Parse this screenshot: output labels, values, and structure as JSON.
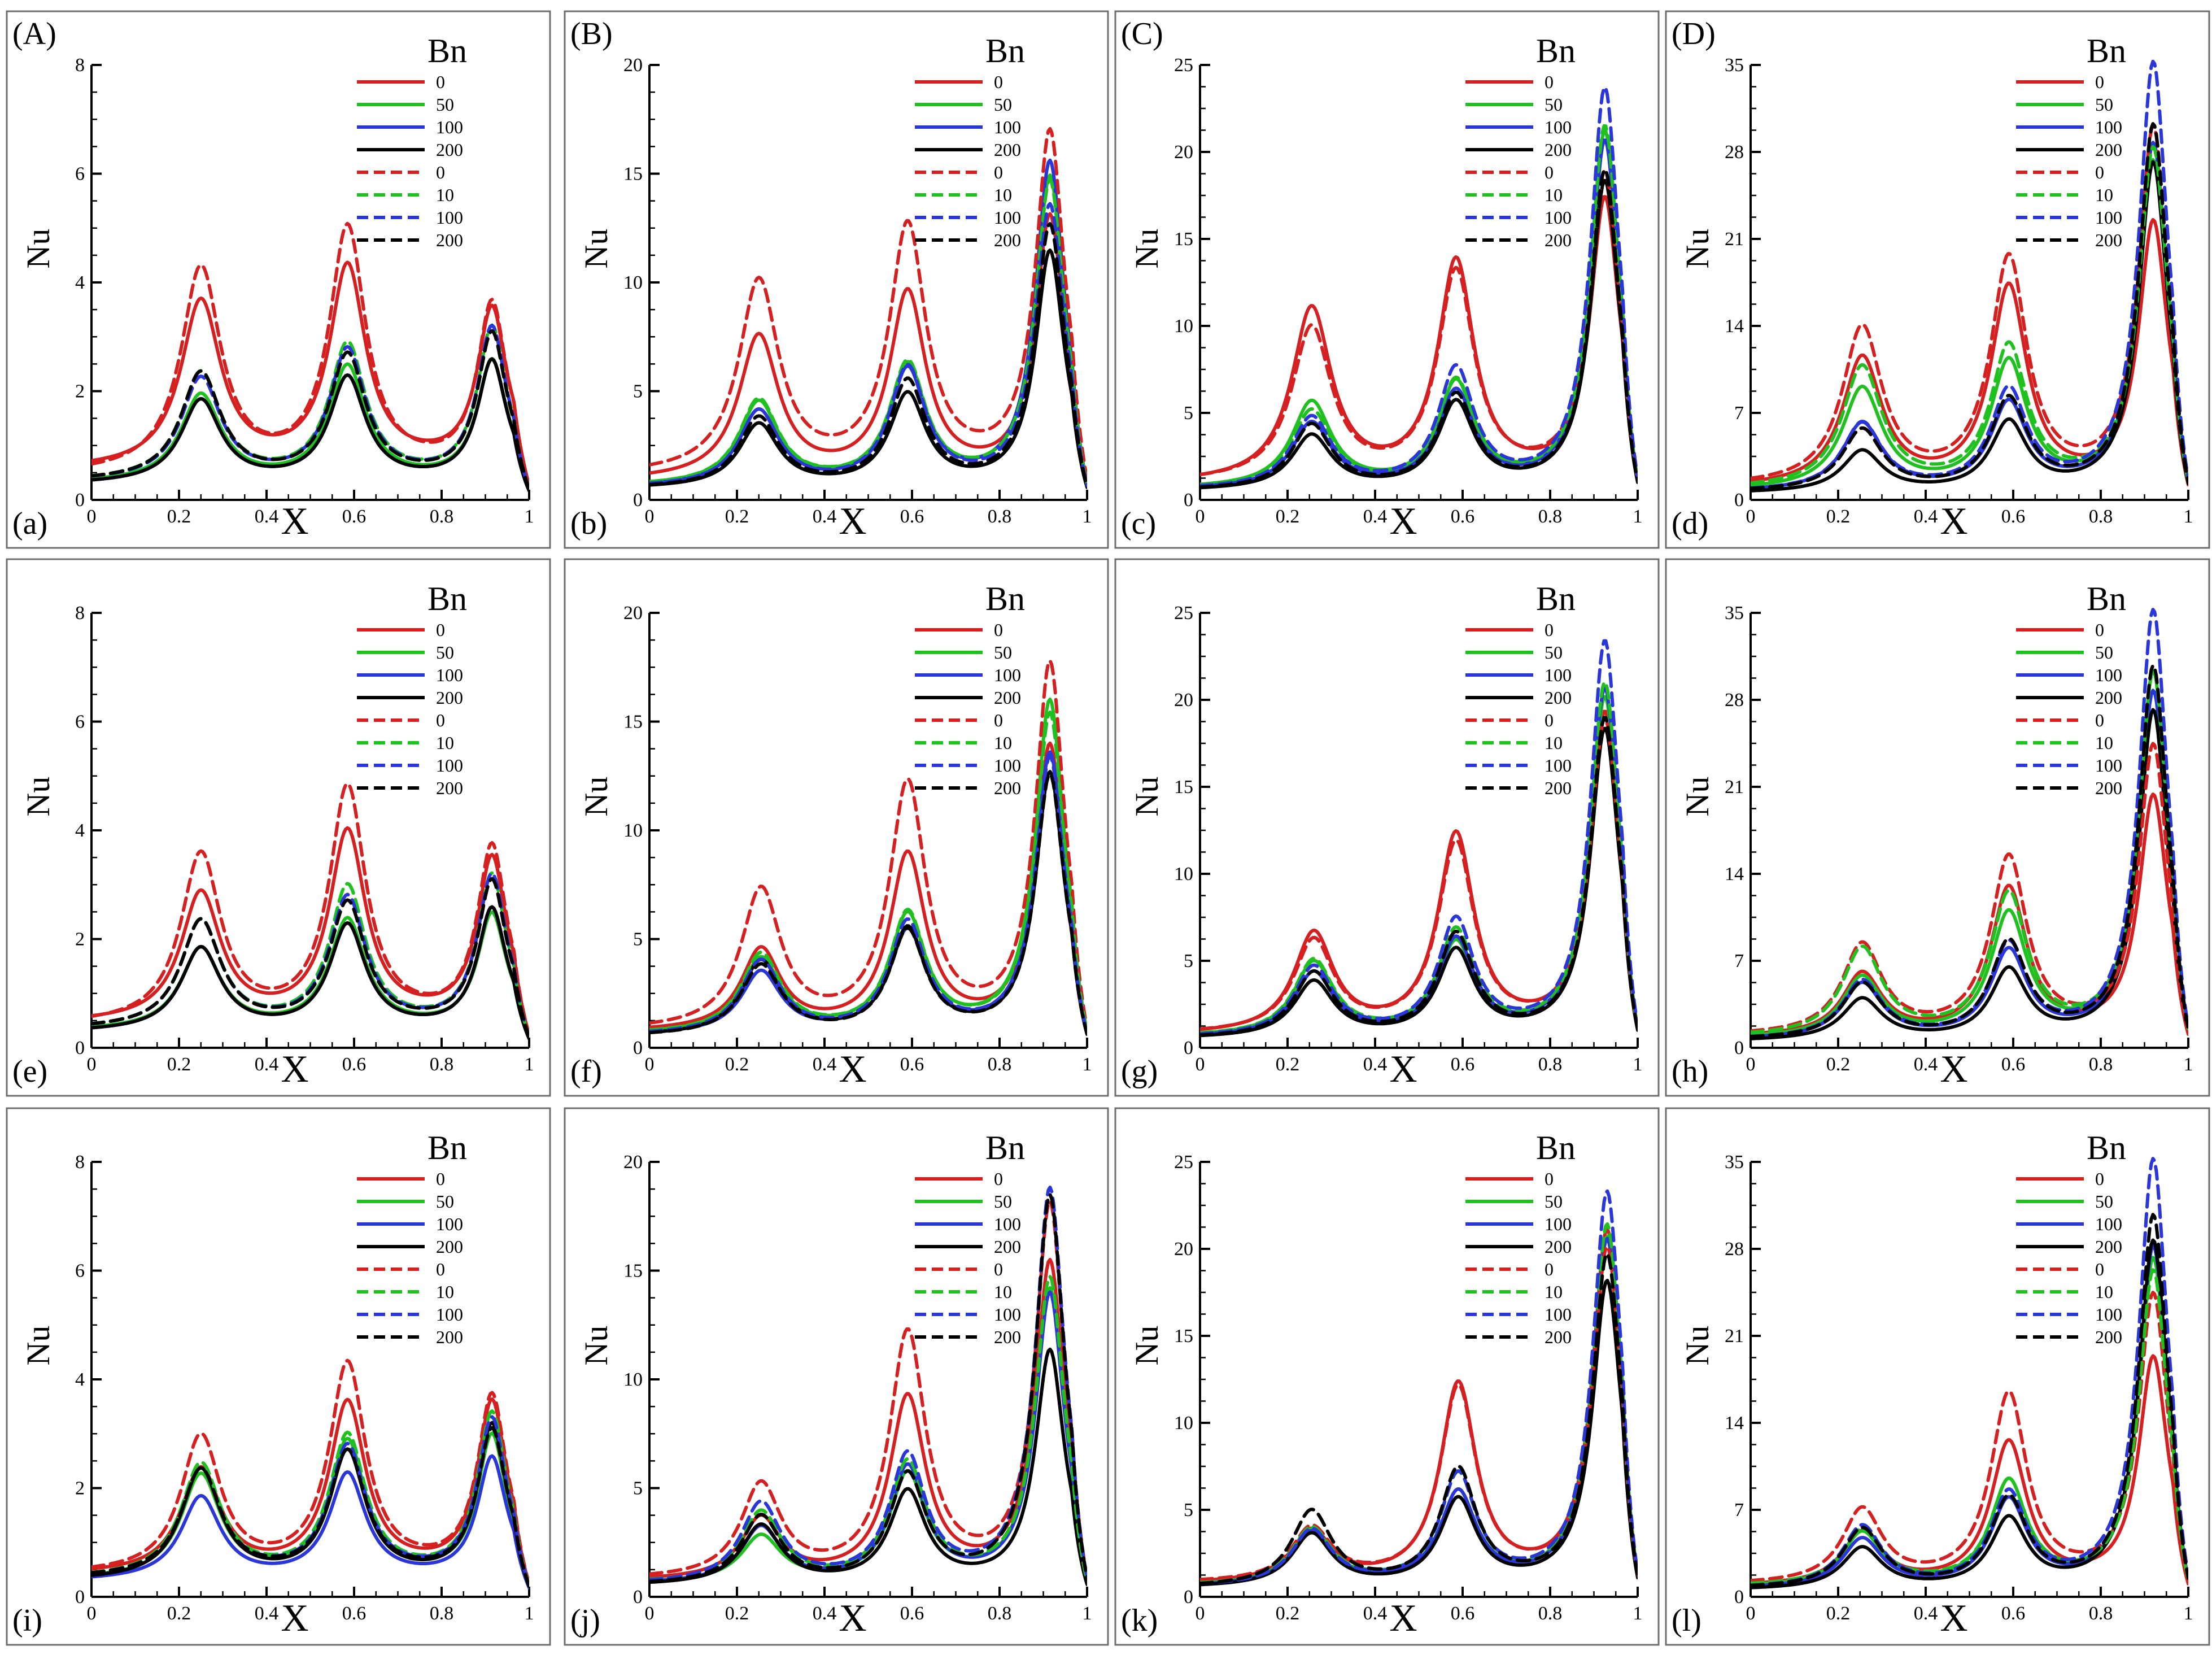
{
  "chart_data": {
    "type": "line",
    "xlabel": "X",
    "ylabel": "Nu",
    "legend_title": "Bn",
    "x_ticks": [
      "0",
      "0.2",
      "0.4",
      "0.6",
      "0.8",
      "1"
    ],
    "series_meta": [
      {
        "label": "0",
        "color": "#d42020",
        "style": "solid"
      },
      {
        "label": "50",
        "color": "#20c020",
        "style": "solid"
      },
      {
        "label": "100",
        "color": "#2a36d8",
        "style": "solid"
      },
      {
        "label": "200",
        "color": "#000000",
        "style": "solid"
      },
      {
        "label": "0",
        "color": "#d42020",
        "style": "dashed"
      },
      {
        "label": "10",
        "color": "#20c020",
        "style": "dashed"
      },
      {
        "label": "100",
        "color": "#2a36d8",
        "style": "dashed"
      },
      {
        "label": "200",
        "color": "#000000",
        "style": "dashed"
      }
    ],
    "columns": [
      {
        "ymax": 8,
        "yticks": [
          "0",
          "2",
          "4",
          "6",
          "8"
        ]
      },
      {
        "ymax": 20,
        "yticks": [
          "0",
          "5",
          "10",
          "15",
          "20"
        ]
      },
      {
        "ymax": 25,
        "yticks": [
          "0",
          "5",
          "10",
          "15",
          "20",
          "25"
        ]
      },
      {
        "ymax": 35,
        "yticks": [
          "0",
          "7",
          "14",
          "21",
          "28",
          "35"
        ]
      }
    ],
    "panels": [
      {
        "letter": "(a)",
        "upper": "(A)",
        "col": 0,
        "row": 0,
        "peak_x": [
          0.25,
          0.585,
          0.915
        ],
        "peaks": [
          [
            3.6,
            4.2,
            3.4
          ],
          [
            1.9,
            2.4,
            2.5
          ],
          [
            1.8,
            2.2,
            2.5
          ],
          [
            1.8,
            2.2,
            2.5
          ],
          [
            4.2,
            4.9,
            3.5
          ],
          [
            2.3,
            2.8,
            3.1
          ],
          [
            2.2,
            2.7,
            3.1
          ],
          [
            2.3,
            2.6,
            3.0
          ]
        ],
        "base": [
          0.55,
          0.3,
          0.28,
          0.28,
          0.45,
          0.33,
          0.33,
          0.33
        ]
      },
      {
        "letter": "(b)",
        "upper": "(B)",
        "col": 1,
        "row": 0,
        "peak_x": [
          0.25,
          0.59,
          0.915
        ],
        "peaks": [
          [
            7.4,
            9.3,
            12.8
          ],
          [
            4.4,
            6.0,
            14.7
          ],
          [
            4.0,
            5.8,
            15.4
          ],
          [
            3.4,
            4.7,
            11.3
          ],
          [
            9.9,
            12.3,
            16.6
          ],
          [
            4.5,
            6.1,
            14.5
          ],
          [
            4.0,
            5.9,
            13.4
          ],
          [
            3.7,
            5.3,
            12.5
          ]
        ],
        "base": [
          0.85,
          0.6,
          0.55,
          0.5,
          1.1,
          0.6,
          0.55,
          0.5
        ]
      },
      {
        "letter": "(c)",
        "upper": "(C)",
        "col": 2,
        "row": 0,
        "peak_x": [
          0.255,
          0.585,
          0.925
        ],
        "peaks": [
          [
            10.8,
            13.4,
            17.0
          ],
          [
            5.5,
            6.5,
            21.0
          ],
          [
            4.3,
            6.0,
            20.5
          ],
          [
            3.6,
            5.4,
            18.2
          ],
          [
            9.7,
            12.8,
            18.5
          ],
          [
            5.0,
            6.6,
            21.3
          ],
          [
            4.6,
            7.3,
            23.5
          ],
          [
            4.2,
            5.8,
            18.8
          ]
        ],
        "base": [
          0.9,
          0.6,
          0.55,
          0.5,
          0.95,
          0.6,
          0.55,
          0.5
        ]
      },
      {
        "letter": "(d)",
        "upper": "(D)",
        "col": 3,
        "row": 0,
        "peak_x": [
          0.255,
          0.59,
          0.92
        ],
        "peaks": [
          [
            11.2,
            16.8,
            22.0
          ],
          [
            8.8,
            10.8,
            27.0
          ],
          [
            6.0,
            7.5,
            28.5
          ],
          [
            3.8,
            6.0,
            27.0
          ],
          [
            13.6,
            19.0,
            29.5
          ],
          [
            10.5,
            12.0,
            28.0
          ],
          [
            6.0,
            8.5,
            35.0
          ],
          [
            5.5,
            7.8,
            30.0
          ]
        ],
        "base": [
          0.9,
          0.7,
          0.6,
          0.5,
          1.0,
          0.8,
          0.6,
          0.6
        ]
      },
      {
        "letter": "(e)",
        "upper": "",
        "col": 0,
        "row": 1,
        "peak_x": [
          0.25,
          0.585,
          0.915
        ],
        "peaks": [
          [
            2.8,
            3.9,
            3.4
          ],
          [
            1.8,
            2.3,
            2.4
          ],
          [
            1.8,
            2.2,
            2.5
          ],
          [
            1.8,
            2.2,
            2.5
          ],
          [
            3.5,
            4.7,
            3.6
          ],
          [
            2.3,
            2.9,
            3.1
          ],
          [
            2.3,
            2.7,
            3.1
          ],
          [
            2.3,
            2.6,
            3.0
          ]
        ],
        "base": [
          0.45,
          0.3,
          0.28,
          0.28,
          0.4,
          0.33,
          0.33,
          0.33
        ]
      },
      {
        "letter": "(f)",
        "upper": "",
        "col": 1,
        "row": 1,
        "peak_x": [
          0.255,
          0.59,
          0.915
        ],
        "peaks": [
          [
            4.4,
            8.7,
            13.7
          ],
          [
            4.0,
            5.9,
            15.8
          ],
          [
            3.4,
            5.2,
            13.4
          ],
          [
            3.9,
            5.3,
            12.5
          ],
          [
            7.1,
            11.9,
            17.4
          ],
          [
            4.2,
            6.0,
            15.2
          ],
          [
            3.9,
            5.6,
            13.2
          ],
          [
            3.7,
            5.2,
            12.4
          ]
        ],
        "base": [
          0.7,
          0.6,
          0.55,
          0.5,
          0.75,
          0.6,
          0.55,
          0.5
        ]
      },
      {
        "letter": "(g)",
        "upper": "",
        "col": 2,
        "row": 1,
        "peak_x": [
          0.26,
          0.585,
          0.925
        ],
        "peaks": [
          [
            6.4,
            12.0,
            19.0
          ],
          [
            4.8,
            5.8,
            20.0
          ],
          [
            4.2,
            6.0,
            20.5
          ],
          [
            3.7,
            5.4,
            18.2
          ],
          [
            6.0,
            11.5,
            18.6
          ],
          [
            4.9,
            6.5,
            20.8
          ],
          [
            4.5,
            7.1,
            23.2
          ],
          [
            4.2,
            6.3,
            18.8
          ]
        ],
        "base": [
          0.7,
          0.6,
          0.55,
          0.5,
          0.75,
          0.6,
          0.55,
          0.5
        ]
      },
      {
        "letter": "(h)",
        "upper": "",
        "col": 3,
        "row": 1,
        "peak_x": [
          0.255,
          0.59,
          0.92
        ],
        "peaks": [
          [
            5.8,
            12.6,
            20.0
          ],
          [
            5.5,
            10.5,
            30.0
          ],
          [
            5.0,
            7.5,
            28.5
          ],
          [
            3.8,
            6.0,
            27.0
          ],
          [
            8.1,
            15.0,
            24.0
          ],
          [
            7.8,
            12.0,
            30.0
          ],
          [
            5.2,
            8.0,
            35.0
          ],
          [
            5.0,
            8.2,
            30.5
          ]
        ],
        "base": [
          0.8,
          0.7,
          0.6,
          0.5,
          0.9,
          0.8,
          0.6,
          0.6
        ]
      },
      {
        "letter": "(i)",
        "upper": "",
        "col": 0,
        "row": 2,
        "peak_x": [
          0.25,
          0.585,
          0.915
        ],
        "peaks": [
          [
            2.3,
            3.5,
            3.5
          ],
          [
            2.2,
            2.8,
            2.9
          ],
          [
            1.8,
            2.2,
            2.5
          ],
          [
            2.3,
            2.6,
            3.1
          ],
          [
            2.9,
            4.2,
            3.6
          ],
          [
            2.4,
            2.9,
            3.3
          ],
          [
            2.3,
            2.7,
            3.2
          ],
          [
            2.3,
            2.6,
            3.0
          ]
        ],
        "base": [
          0.4,
          0.3,
          0.28,
          0.28,
          0.4,
          0.33,
          0.33,
          0.33
        ]
      },
      {
        "letter": "(j)",
        "upper": "",
        "col": 1,
        "row": 2,
        "peak_x": [
          0.255,
          0.59,
          0.915
        ],
        "peaks": [
          [
            3.5,
            9.0,
            15.2
          ],
          [
            2.7,
            5.5,
            14.0
          ],
          [
            3.1,
            5.8,
            13.8
          ],
          [
            3.2,
            4.7,
            11.2
          ],
          [
            5.0,
            11.9,
            17.8
          ],
          [
            3.8,
            6.0,
            14.5
          ],
          [
            4.2,
            6.3,
            18.6
          ],
          [
            3.6,
            5.4,
            18.3
          ]
        ],
        "base": [
          0.7,
          0.6,
          0.55,
          0.5,
          0.75,
          0.6,
          0.55,
          0.5
        ]
      },
      {
        "letter": "(k)",
        "upper": "",
        "col": 2,
        "row": 2,
        "peak_x": [
          0.255,
          0.59,
          0.93
        ],
        "peaks": [
          [
            3.6,
            12.0,
            20.8
          ],
          [
            3.7,
            5.8,
            20.5
          ],
          [
            3.6,
            5.8,
            20.4
          ],
          [
            3.5,
            5.4,
            18.0
          ],
          [
            3.8,
            11.8,
            19.8
          ],
          [
            3.8,
            6.8,
            21.2
          ],
          [
            3.7,
            6.8,
            23.1
          ],
          [
            4.8,
            7.1,
            19.5
          ]
        ],
        "base": [
          0.7,
          0.6,
          0.55,
          0.5,
          0.75,
          0.6,
          0.55,
          0.5
        ]
      },
      {
        "letter": "(l)",
        "upper": "",
        "col": 3,
        "row": 2,
        "peak_x": [
          0.255,
          0.59,
          0.92
        ],
        "peaks": [
          [
            5.0,
            12.2,
            19.0
          ],
          [
            5.0,
            9.0,
            27.0
          ],
          [
            4.5,
            7.5,
            28.0
          ],
          [
            3.8,
            6.0,
            28.5
          ],
          [
            6.8,
            16.0,
            24.0
          ],
          [
            5.2,
            9.0,
            26.0
          ],
          [
            5.5,
            8.0,
            35.0
          ],
          [
            5.3,
            7.6,
            30.5
          ]
        ],
        "base": [
          0.8,
          0.7,
          0.6,
          0.5,
          0.9,
          0.8,
          0.6,
          0.6
        ]
      }
    ]
  }
}
